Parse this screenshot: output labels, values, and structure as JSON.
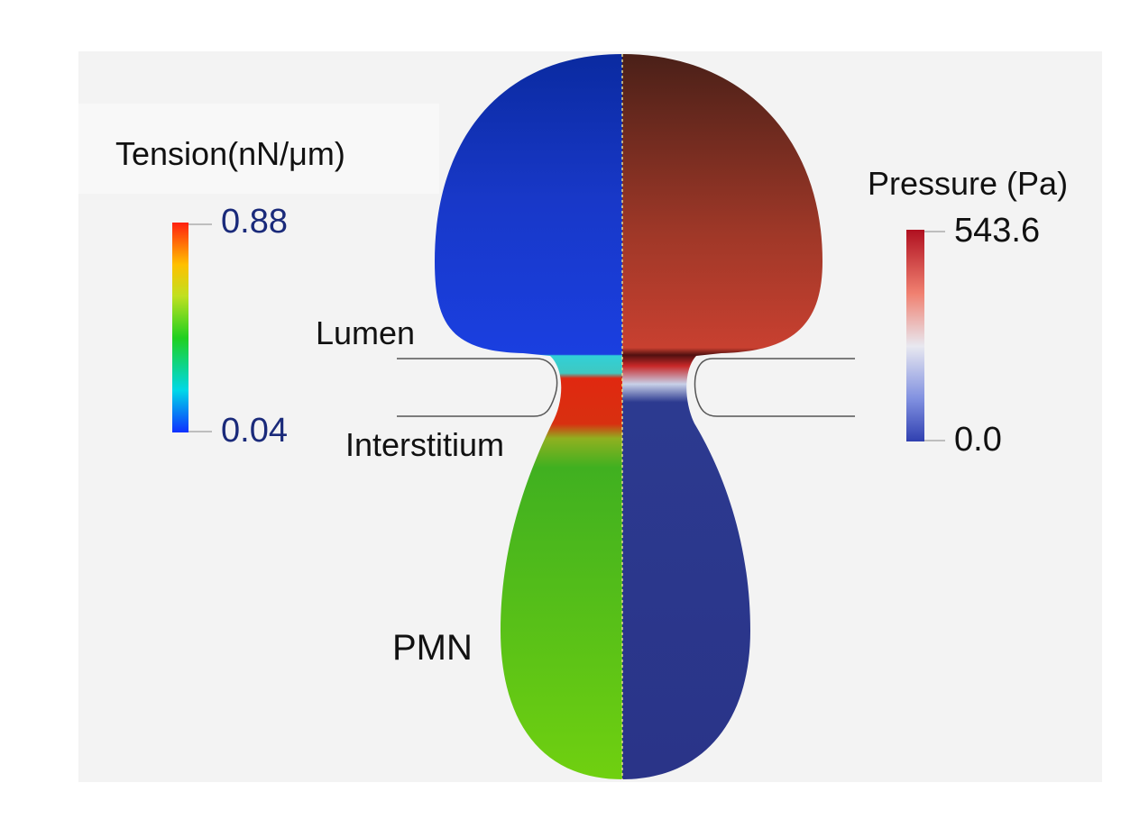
{
  "tension_legend": {
    "title": "Tension(nN/μm)",
    "max": "0.88",
    "min": "0.04"
  },
  "pressure_legend": {
    "title": "Pressure (Pa)",
    "max": "543.6",
    "min": "0.0"
  },
  "labels": {
    "lumen": "Lumen",
    "interstitium": "Interstitium",
    "pmn": "PMN"
  }
}
